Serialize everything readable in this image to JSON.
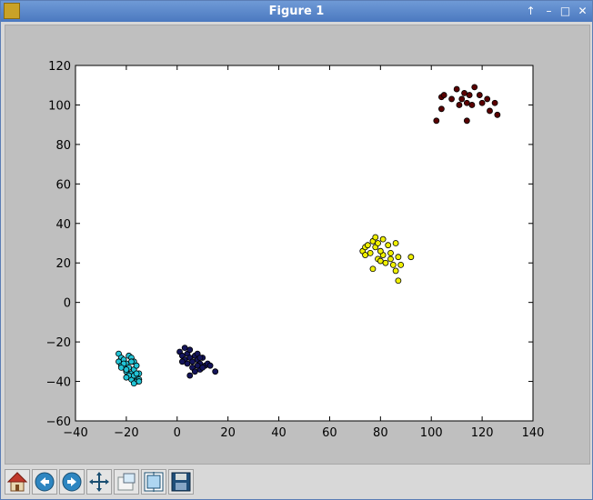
{
  "window": {
    "title": "Figure 1",
    "buttons": [
      "↑",
      "–",
      "□",
      "✕"
    ]
  },
  "toolbar": {
    "tools": [
      {
        "name": "home-button",
        "icon": "home-icon"
      },
      {
        "name": "back-button",
        "icon": "back-arrow-icon"
      },
      {
        "name": "forward-button",
        "icon": "forward-arrow-icon"
      },
      {
        "name": "pan-button",
        "icon": "pan-arrows-icon"
      },
      {
        "name": "zoom-button",
        "icon": "zoom-rect-icon"
      },
      {
        "name": "subplots-button",
        "icon": "subplots-icon"
      },
      {
        "name": "save-button",
        "icon": "save-disk-icon"
      }
    ]
  },
  "chart_data": {
    "type": "scatter",
    "xlim": [
      -40,
      140
    ],
    "ylim": [
      -60,
      120
    ],
    "xticks": [
      -40,
      -20,
      0,
      20,
      40,
      60,
      80,
      100,
      120,
      140
    ],
    "yticks": [
      -60,
      -40,
      -20,
      0,
      20,
      40,
      60,
      80,
      100,
      120
    ],
    "title": "",
    "xlabel": "",
    "ylabel": "",
    "grid": false,
    "series": [
      {
        "color": "#22c4d6",
        "points": [
          [
            -23,
            -26
          ],
          [
            -22,
            -28
          ],
          [
            -23,
            -30
          ],
          [
            -21,
            -29
          ],
          [
            -22,
            -32
          ],
          [
            -21,
            -33
          ],
          [
            -20,
            -31
          ],
          [
            -20,
            -35
          ],
          [
            -19,
            -27
          ],
          [
            -18,
            -28
          ],
          [
            -19,
            -33
          ],
          [
            -17,
            -30
          ],
          [
            -18,
            -36
          ],
          [
            -17,
            -34
          ],
          [
            -16,
            -38
          ],
          [
            -15,
            -36
          ],
          [
            -16,
            -40
          ],
          [
            -15,
            -39
          ],
          [
            -18,
            -39
          ],
          [
            -17,
            -41
          ],
          [
            -19,
            -37
          ],
          [
            -20,
            -34
          ],
          [
            -21,
            -31
          ],
          [
            -22,
            -33
          ],
          [
            -16,
            -32
          ],
          [
            -17,
            -37
          ],
          [
            -18,
            -30
          ],
          [
            -15,
            -40
          ],
          [
            -16,
            -36
          ],
          [
            -20,
            -38
          ]
        ]
      },
      {
        "color": "#14145a",
        "points": [
          [
            1,
            -25
          ],
          [
            2,
            -27
          ],
          [
            3,
            -23
          ],
          [
            4,
            -26
          ],
          [
            3,
            -29
          ],
          [
            5,
            -28
          ],
          [
            6,
            -30
          ],
          [
            5,
            -24
          ],
          [
            7,
            -27
          ],
          [
            6,
            -33
          ],
          [
            8,
            -26
          ],
          [
            8,
            -29
          ],
          [
            9,
            -31
          ],
          [
            7,
            -35
          ],
          [
            10,
            -28
          ],
          [
            9,
            -34
          ],
          [
            11,
            -32
          ],
          [
            12,
            -31
          ],
          [
            13,
            -32
          ],
          [
            15,
            -35
          ],
          [
            5,
            -37
          ],
          [
            4,
            -31
          ],
          [
            2,
            -30
          ],
          [
            8,
            -32
          ],
          [
            9,
            -28
          ],
          [
            10,
            -33
          ]
        ]
      },
      {
        "color": "#f0f000",
        "points": [
          [
            73,
            26
          ],
          [
            74,
            28
          ],
          [
            74,
            24
          ],
          [
            75,
            29
          ],
          [
            76,
            25
          ],
          [
            77,
            31
          ],
          [
            77,
            17
          ],
          [
            78,
            33
          ],
          [
            78,
            28
          ],
          [
            79,
            30
          ],
          [
            79,
            22
          ],
          [
            80,
            21
          ],
          [
            81,
            24
          ],
          [
            81,
            32
          ],
          [
            82,
            20
          ],
          [
            83,
            29
          ],
          [
            84,
            25
          ],
          [
            84,
            22
          ],
          [
            85,
            19
          ],
          [
            86,
            30
          ],
          [
            86,
            16
          ],
          [
            87,
            23
          ],
          [
            87,
            11
          ],
          [
            88,
            19
          ],
          [
            92,
            23
          ],
          [
            80,
            26
          ]
        ]
      },
      {
        "color": "#5a0000",
        "points": [
          [
            102,
            92
          ],
          [
            104,
            98
          ],
          [
            104,
            104
          ],
          [
            105,
            105
          ],
          [
            108,
            103
          ],
          [
            110,
            108
          ],
          [
            111,
            100
          ],
          [
            112,
            103
          ],
          [
            113,
            106
          ],
          [
            114,
            92
          ],
          [
            114,
            101
          ],
          [
            115,
            105
          ],
          [
            116,
            100
          ],
          [
            117,
            109
          ],
          [
            119,
            105
          ],
          [
            120,
            101
          ],
          [
            122,
            103
          ],
          [
            123,
            97
          ],
          [
            125,
            101
          ],
          [
            126,
            95
          ]
        ]
      }
    ]
  }
}
